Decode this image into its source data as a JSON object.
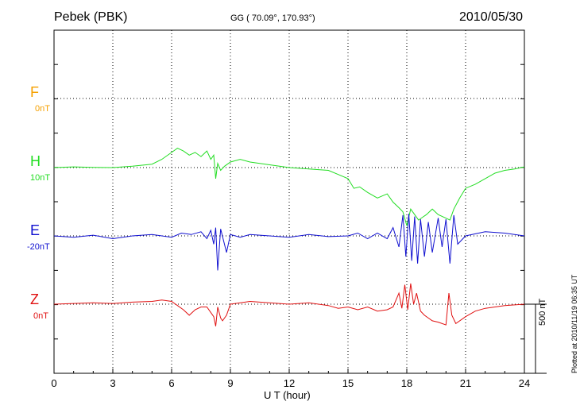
{
  "header": {
    "station": "Pebek (PBK)",
    "coords": "GG ( 70.09°, 170.93°)",
    "date": "2010/05/30"
  },
  "channels": [
    {
      "label": "F",
      "baseline": "0nT",
      "color": "#f5a000"
    },
    {
      "label": "H",
      "baseline": "10nT",
      "color": "#22dd22"
    },
    {
      "label": "E",
      "baseline": "-20nT",
      "color": "#1010d0"
    },
    {
      "label": "Z",
      "baseline": "0nT",
      "color": "#e01010"
    }
  ],
  "scale_bar": "500 nT",
  "plotted_stamp": "Plotted at 2010/11/19 06:35 UT",
  "chart_data": {
    "type": "line",
    "xlabel": "U T (hour)",
    "xlim": [
      0,
      24
    ],
    "xticks": [
      "0",
      "3",
      "6",
      "9",
      "12",
      "15",
      "18",
      "21",
      "24"
    ],
    "grid": true,
    "series": [
      {
        "name": "H",
        "color": "#22dd22",
        "x": [
          0,
          1,
          2,
          3,
          4,
          5,
          5.5,
          6,
          6.3,
          6.6,
          6.9,
          7.2,
          7.5,
          7.8,
          8.0,
          8.15,
          8.25,
          8.35,
          8.5,
          8.7,
          9.0,
          9.5,
          10,
          10.5,
          11,
          12,
          13,
          14,
          14.5,
          15,
          15.3,
          15.6,
          16,
          16.5,
          17,
          17.3,
          17.6,
          17.8,
          18,
          18.2,
          18.4,
          18.6,
          18.8,
          19,
          19.3,
          19.6,
          19.9,
          20.2,
          20.4,
          20.7,
          21,
          21.5,
          22,
          22.5,
          23,
          23.5,
          24
        ],
        "values": [
          0,
          5,
          2,
          0,
          10,
          25,
          60,
          110,
          140,
          120,
          90,
          110,
          80,
          120,
          60,
          90,
          -80,
          30,
          -20,
          10,
          40,
          60,
          40,
          30,
          20,
          0,
          -10,
          -20,
          -50,
          -80,
          -150,
          -140,
          -180,
          -220,
          -190,
          -250,
          -290,
          -320,
          -420,
          -300,
          -340,
          -380,
          -360,
          -340,
          -300,
          -340,
          -360,
          -380,
          -300,
          -220,
          -150,
          -120,
          -80,
          -40,
          -20,
          -10,
          5
        ]
      },
      {
        "name": "E",
        "color": "#1010d0",
        "x": [
          0,
          1,
          2,
          3,
          4,
          5,
          6,
          6.5,
          7,
          7.5,
          7.8,
          8.0,
          8.15,
          8.25,
          8.35,
          8.5,
          8.8,
          9.0,
          9.5,
          10,
          11,
          12,
          13,
          14,
          15,
          15.5,
          16,
          16.5,
          17,
          17.3,
          17.6,
          17.8,
          17.95,
          18.1,
          18.25,
          18.4,
          18.55,
          18.7,
          18.9,
          19.1,
          19.3,
          19.6,
          19.8,
          20.0,
          20.2,
          20.4,
          20.6,
          21,
          22,
          23,
          24
        ],
        "values": [
          0,
          -10,
          5,
          -20,
          0,
          10,
          -10,
          20,
          10,
          30,
          -20,
          40,
          -60,
          60,
          -250,
          50,
          -120,
          10,
          -10,
          10,
          0,
          -10,
          10,
          -5,
          0,
          20,
          -20,
          20,
          -20,
          60,
          -80,
          150,
          -150,
          160,
          -180,
          140,
          -200,
          120,
          -150,
          100,
          -120,
          130,
          -80,
          120,
          -200,
          150,
          -60,
          0,
          30,
          20,
          0
        ]
      },
      {
        "name": "Z",
        "color": "#e01010",
        "x": [
          0,
          1,
          2,
          3,
          4,
          5,
          5.5,
          6,
          6.3,
          6.6,
          6.9,
          7.2,
          7.5,
          7.8,
          8.0,
          8.15,
          8.25,
          8.35,
          8.5,
          8.6,
          8.8,
          9.0,
          9.5,
          10,
          11,
          12,
          13,
          14,
          14.5,
          15,
          15.5,
          16,
          16.5,
          17,
          17.3,
          17.6,
          17.75,
          17.9,
          18.05,
          18.2,
          18.35,
          18.5,
          18.7,
          18.9,
          19.1,
          19.3,
          19.6,
          20.0,
          20.15,
          20.3,
          20.5,
          21,
          21.5,
          22,
          23,
          24
        ],
        "values": [
          0,
          5,
          10,
          5,
          15,
          20,
          30,
          20,
          -10,
          -40,
          -80,
          -40,
          -20,
          -20,
          -60,
          -90,
          -160,
          -20,
          -100,
          -120,
          -80,
          0,
          10,
          20,
          10,
          0,
          10,
          -10,
          -30,
          -20,
          -40,
          -20,
          -50,
          -40,
          -20,
          80,
          -30,
          140,
          -40,
          150,
          0,
          80,
          -50,
          -80,
          -100,
          -120,
          -130,
          -150,
          80,
          -80,
          -140,
          -90,
          -50,
          -30,
          -10,
          0
        ]
      }
    ]
  }
}
